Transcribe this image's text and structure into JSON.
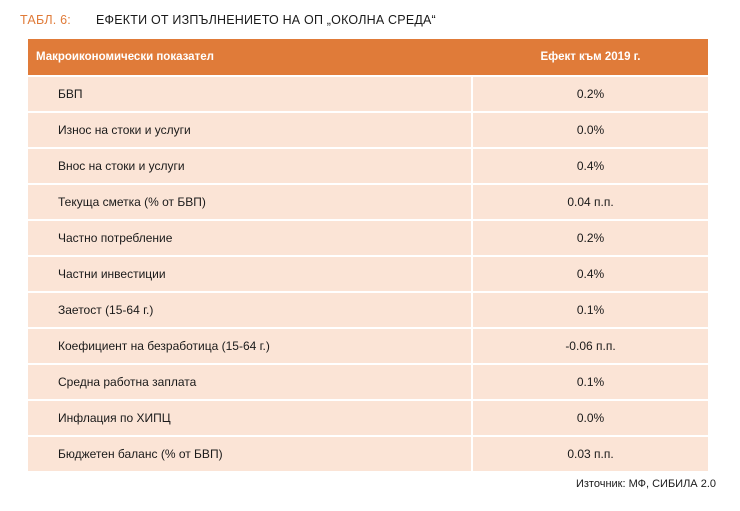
{
  "caption": {
    "label": "ТАБЛ. 6:",
    "title": "ЕФЕКТИ ОТ ИЗПЪЛНЕНИЕТО НА ОП „ОКОЛНА СРЕДА“"
  },
  "table": {
    "headers": [
      "Макроикономически показател",
      "Ефект към 2019 г."
    ],
    "rows": [
      {
        "indicator": "БВП",
        "effect": "0.2%"
      },
      {
        "indicator": "Износ на стоки и услуги",
        "effect": "0.0%"
      },
      {
        "indicator": "Внос на стоки и услуги",
        "effect": "0.4%"
      },
      {
        "indicator": "Текуща сметка (% от БВП)",
        "effect": "0.04 п.п."
      },
      {
        "indicator": "Частно потребление",
        "effect": "0.2%"
      },
      {
        "indicator": "Частни инвестиции",
        "effect": "0.4%"
      },
      {
        "indicator": "Заетост (15-64 г.)",
        "effect": "0.1%"
      },
      {
        "indicator": "Коефициент на безработица (15-64 г.)",
        "effect": "-0.06 п.п."
      },
      {
        "indicator": "Средна работна заплата",
        "effect": "0.1%"
      },
      {
        "indicator": "Инфлация по ХИПЦ",
        "effect": "0.0%"
      },
      {
        "indicator": "Бюджетен баланс (% от БВП)",
        "effect": "0.03 п.п."
      }
    ]
  },
  "source": "Източник: МФ, СИБИЛА 2.0",
  "colors": {
    "accent": "#e07b39",
    "row_fill": "#fbe4d6"
  }
}
